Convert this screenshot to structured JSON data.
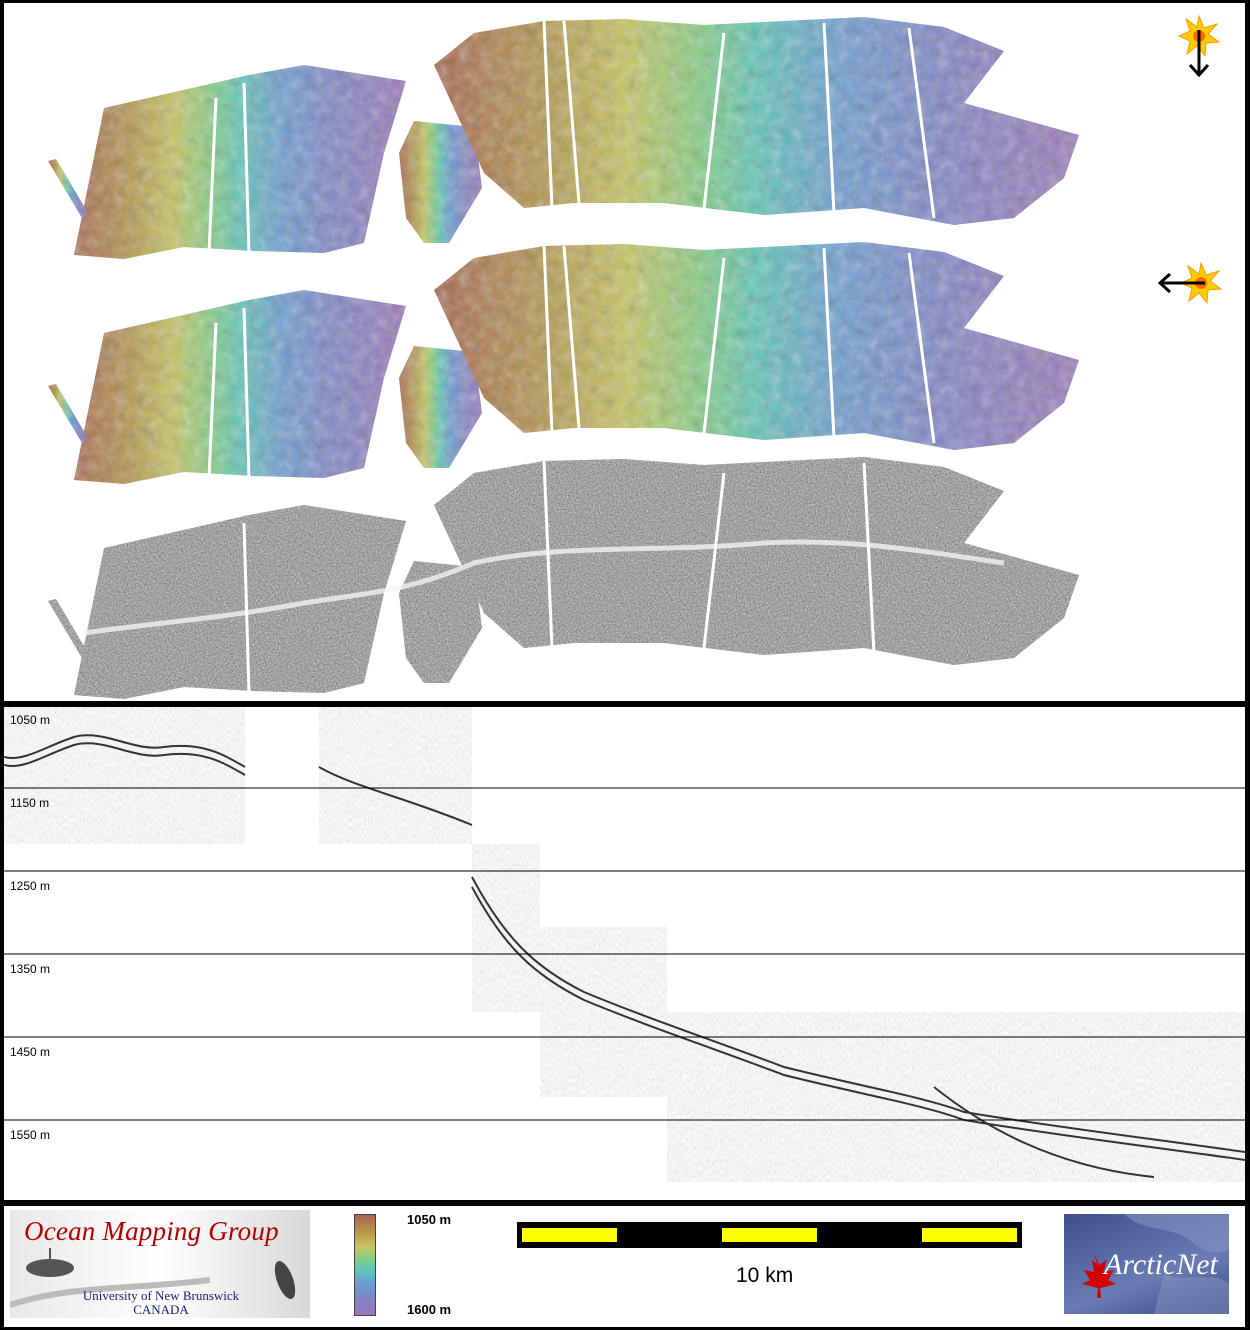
{
  "profile": {
    "depth_labels": [
      "1050 m",
      "1150 m",
      "1250 m",
      "1350 m",
      "1450 m",
      "1550 m"
    ]
  },
  "footer": {
    "omg_title": "Ocean Mapping Group",
    "omg_university": "University of New Brunswick",
    "omg_country": "CANADA",
    "colorbar_top": "1050 m",
    "colorbar_bottom": "1600 m",
    "scale_label": "10 km",
    "arcticnet_name": "ArcticNet"
  },
  "colors": {
    "frame": "#000000",
    "panel": "#ffffff",
    "scale_yellow": "#ffff00",
    "sun": "#ffcc00",
    "omg_red": "#b40000"
  },
  "icons": [
    "sun-icon",
    "arrow-down-icon",
    "arrow-left-icon",
    "maple-leaf-icon"
  ]
}
